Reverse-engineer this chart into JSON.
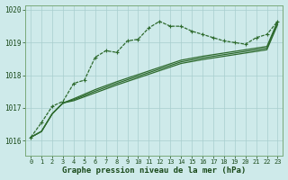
{
  "bg_color": "#ceeaea",
  "grid_color": "#a8cece",
  "line_color": "#2d6a2d",
  "text_color": "#1a4a1a",
  "xlabel": "Graphe pression niveau de la mer (hPa)",
  "xlim": [
    -0.5,
    23.5
  ],
  "ylim": [
    1015.55,
    1020.15
  ],
  "yticks": [
    1016,
    1017,
    1018,
    1019,
    1020
  ],
  "xticks": [
    0,
    1,
    2,
    3,
    4,
    5,
    6,
    7,
    8,
    9,
    10,
    11,
    12,
    13,
    14,
    15,
    16,
    17,
    18,
    19,
    20,
    21,
    22,
    23
  ],
  "line_marker": [
    1016.1,
    1016.55,
    1017.05,
    1017.2,
    1017.75,
    1017.85,
    1018.55,
    1018.75,
    1018.7,
    1019.05,
    1019.1,
    1019.45,
    1019.65,
    1019.5,
    1019.5,
    1019.35,
    1019.25,
    1019.15,
    1019.05,
    1019.0,
    1018.95,
    1019.15,
    1019.25,
    1019.65
  ],
  "line_straight1": [
    1016.1,
    1016.28,
    1016.82,
    1017.15,
    1017.28,
    1017.42,
    1017.56,
    1017.68,
    1017.8,
    1017.91,
    1018.02,
    1018.13,
    1018.24,
    1018.35,
    1018.46,
    1018.52,
    1018.58,
    1018.63,
    1018.68,
    1018.73,
    1018.78,
    1018.83,
    1018.88,
    1019.65
  ],
  "line_straight2": [
    1016.1,
    1016.28,
    1016.82,
    1017.15,
    1017.25,
    1017.38,
    1017.51,
    1017.63,
    1017.75,
    1017.86,
    1017.97,
    1018.08,
    1018.19,
    1018.3,
    1018.41,
    1018.47,
    1018.53,
    1018.58,
    1018.63,
    1018.68,
    1018.73,
    1018.78,
    1018.83,
    1019.6
  ],
  "line_straight3": [
    1016.1,
    1016.28,
    1016.82,
    1017.15,
    1017.22,
    1017.34,
    1017.46,
    1017.58,
    1017.7,
    1017.81,
    1017.92,
    1018.03,
    1018.14,
    1018.25,
    1018.36,
    1018.42,
    1018.48,
    1018.53,
    1018.58,
    1018.63,
    1018.68,
    1018.73,
    1018.78,
    1019.55
  ]
}
